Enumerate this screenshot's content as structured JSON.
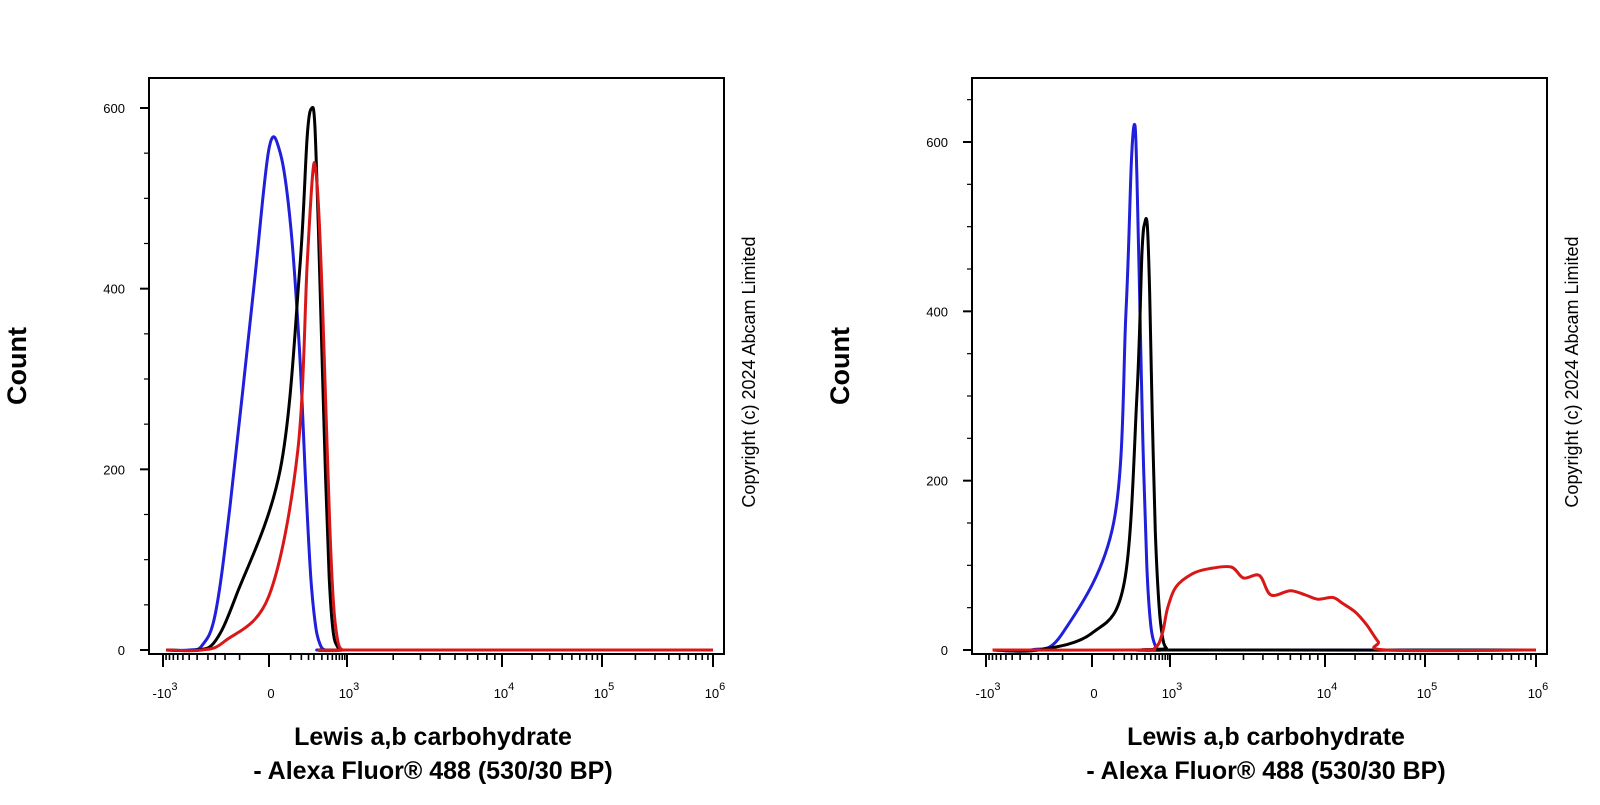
{
  "chart_data": [
    {
      "type": "line",
      "panel": "left",
      "xlabel_line1": "Lewis a,b carbohydrate",
      "xlabel_line2": "- Alexa Fluor® 488 (530/30 BP)",
      "ylabel": "Count",
      "copyright": "Copyright (c) 2024 Abcam Limited",
      "y_ticks": [
        {
          "value": 0,
          "label": "0"
        },
        {
          "value": 200,
          "label": "200"
        },
        {
          "value": 400,
          "label": "400"
        },
        {
          "value": 600,
          "label": "600"
        }
      ],
      "x_ticks": [
        {
          "value": -1000,
          "base": "-10",
          "exp": "3"
        },
        {
          "value": 0,
          "base": "0",
          "exp": ""
        },
        {
          "value": 1000,
          "base": "10",
          "exp": "3"
        },
        {
          "value": 10000,
          "base": "10",
          "exp": "4"
        },
        {
          "value": 100000,
          "base": "10",
          "exp": "5"
        },
        {
          "value": 1000000,
          "base": "10",
          "exp": "6"
        }
      ],
      "ylim": [
        0,
        630
      ],
      "x_scale": "biexponential",
      "series": [
        {
          "name": "blue",
          "color": "#1f1fdc",
          "x": [
            -900,
            -400,
            -250,
            -150,
            -80,
            -20,
            0,
            20,
            50,
            90,
            130,
            170,
            220,
            280,
            350,
            450,
            600,
            1000,
            1000000
          ],
          "y": [
            0,
            0,
            5,
            40,
            160,
            400,
            555,
            550,
            470,
            330,
            180,
            80,
            25,
            5,
            0,
            0,
            0,
            0,
            0
          ]
        },
        {
          "name": "black",
          "color": "#000000",
          "x": [
            -900,
            -300,
            -150,
            -60,
            20,
            90,
            140,
            180,
            210,
            250,
            300,
            360,
            430,
            520,
            650,
            800,
            1000,
            1000000
          ],
          "y": [
            0,
            0,
            10,
            60,
            200,
            420,
            570,
            600,
            580,
            470,
            330,
            190,
            80,
            20,
            3,
            0,
            0,
            0
          ]
        },
        {
          "name": "red",
          "color": "#d81818",
          "x": [
            -900,
            -250,
            -100,
            0,
            80,
            140,
            190,
            220,
            260,
            310,
            370,
            440,
            530,
            650,
            800,
            1000,
            1000000
          ],
          "y": [
            0,
            0,
            10,
            60,
            220,
            430,
            530,
            530,
            480,
            380,
            260,
            140,
            50,
            10,
            0,
            0,
            0
          ]
        }
      ]
    },
    {
      "type": "line",
      "panel": "right",
      "xlabel_line1": "Lewis a,b carbohydrate",
      "xlabel_line2": "- Alexa Fluor® 488 (530/30 BP)",
      "ylabel": "Count",
      "copyright": "Copyright (c) 2024 Abcam Limited",
      "y_ticks": [
        {
          "value": 0,
          "label": "0"
        },
        {
          "value": 200,
          "label": "200"
        },
        {
          "value": 400,
          "label": "400"
        },
        {
          "value": 600,
          "label": "600"
        }
      ],
      "x_ticks": [
        {
          "value": -1000,
          "base": "-10",
          "exp": "3"
        },
        {
          "value": 0,
          "base": "0",
          "exp": ""
        },
        {
          "value": 1000,
          "base": "10",
          "exp": "3"
        },
        {
          "value": 10000,
          "base": "10",
          "exp": "4"
        },
        {
          "value": 100000,
          "base": "10",
          "exp": "5"
        },
        {
          "value": 1000000,
          "base": "10",
          "exp": "6"
        }
      ],
      "ylim": [
        0,
        670
      ],
      "x_scale": "biexponential",
      "series": [
        {
          "name": "blue",
          "color": "#1f1fdc",
          "x": [
            -800,
            -200,
            -50,
            50,
            110,
            150,
            180,
            200,
            230,
            270,
            330,
            400,
            500,
            650,
            800,
            1000000
          ],
          "y": [
            0,
            0,
            20,
            150,
            400,
            580,
            620,
            560,
            420,
            250,
            100,
            30,
            5,
            0,
            0,
            0
          ]
        },
        {
          "name": "black",
          "color": "#000000",
          "x": [
            -800,
            -150,
            0,
            100,
            200,
            260,
            300,
            340,
            380,
            430,
            500,
            600,
            720,
            850,
            1000,
            1000000
          ],
          "y": [
            0,
            0,
            20,
            80,
            300,
            470,
            505,
            500,
            420,
            280,
            140,
            50,
            12,
            2,
            0,
            0
          ]
        },
        {
          "name": "red",
          "color": "#d81818",
          "x": [
            -800,
            200,
            500,
            700,
            900,
            1100,
            1400,
            1800,
            2500,
            3000,
            3800,
            4500,
            6000,
            7500,
            9000,
            12000,
            15000,
            20000,
            26000,
            34000,
            42000,
            1000000
          ],
          "y": [
            0,
            0,
            3,
            20,
            50,
            75,
            90,
            96,
            98,
            85,
            88,
            65,
            70,
            65,
            60,
            62,
            55,
            45,
            30,
            10,
            0,
            0
          ]
        }
      ]
    }
  ]
}
